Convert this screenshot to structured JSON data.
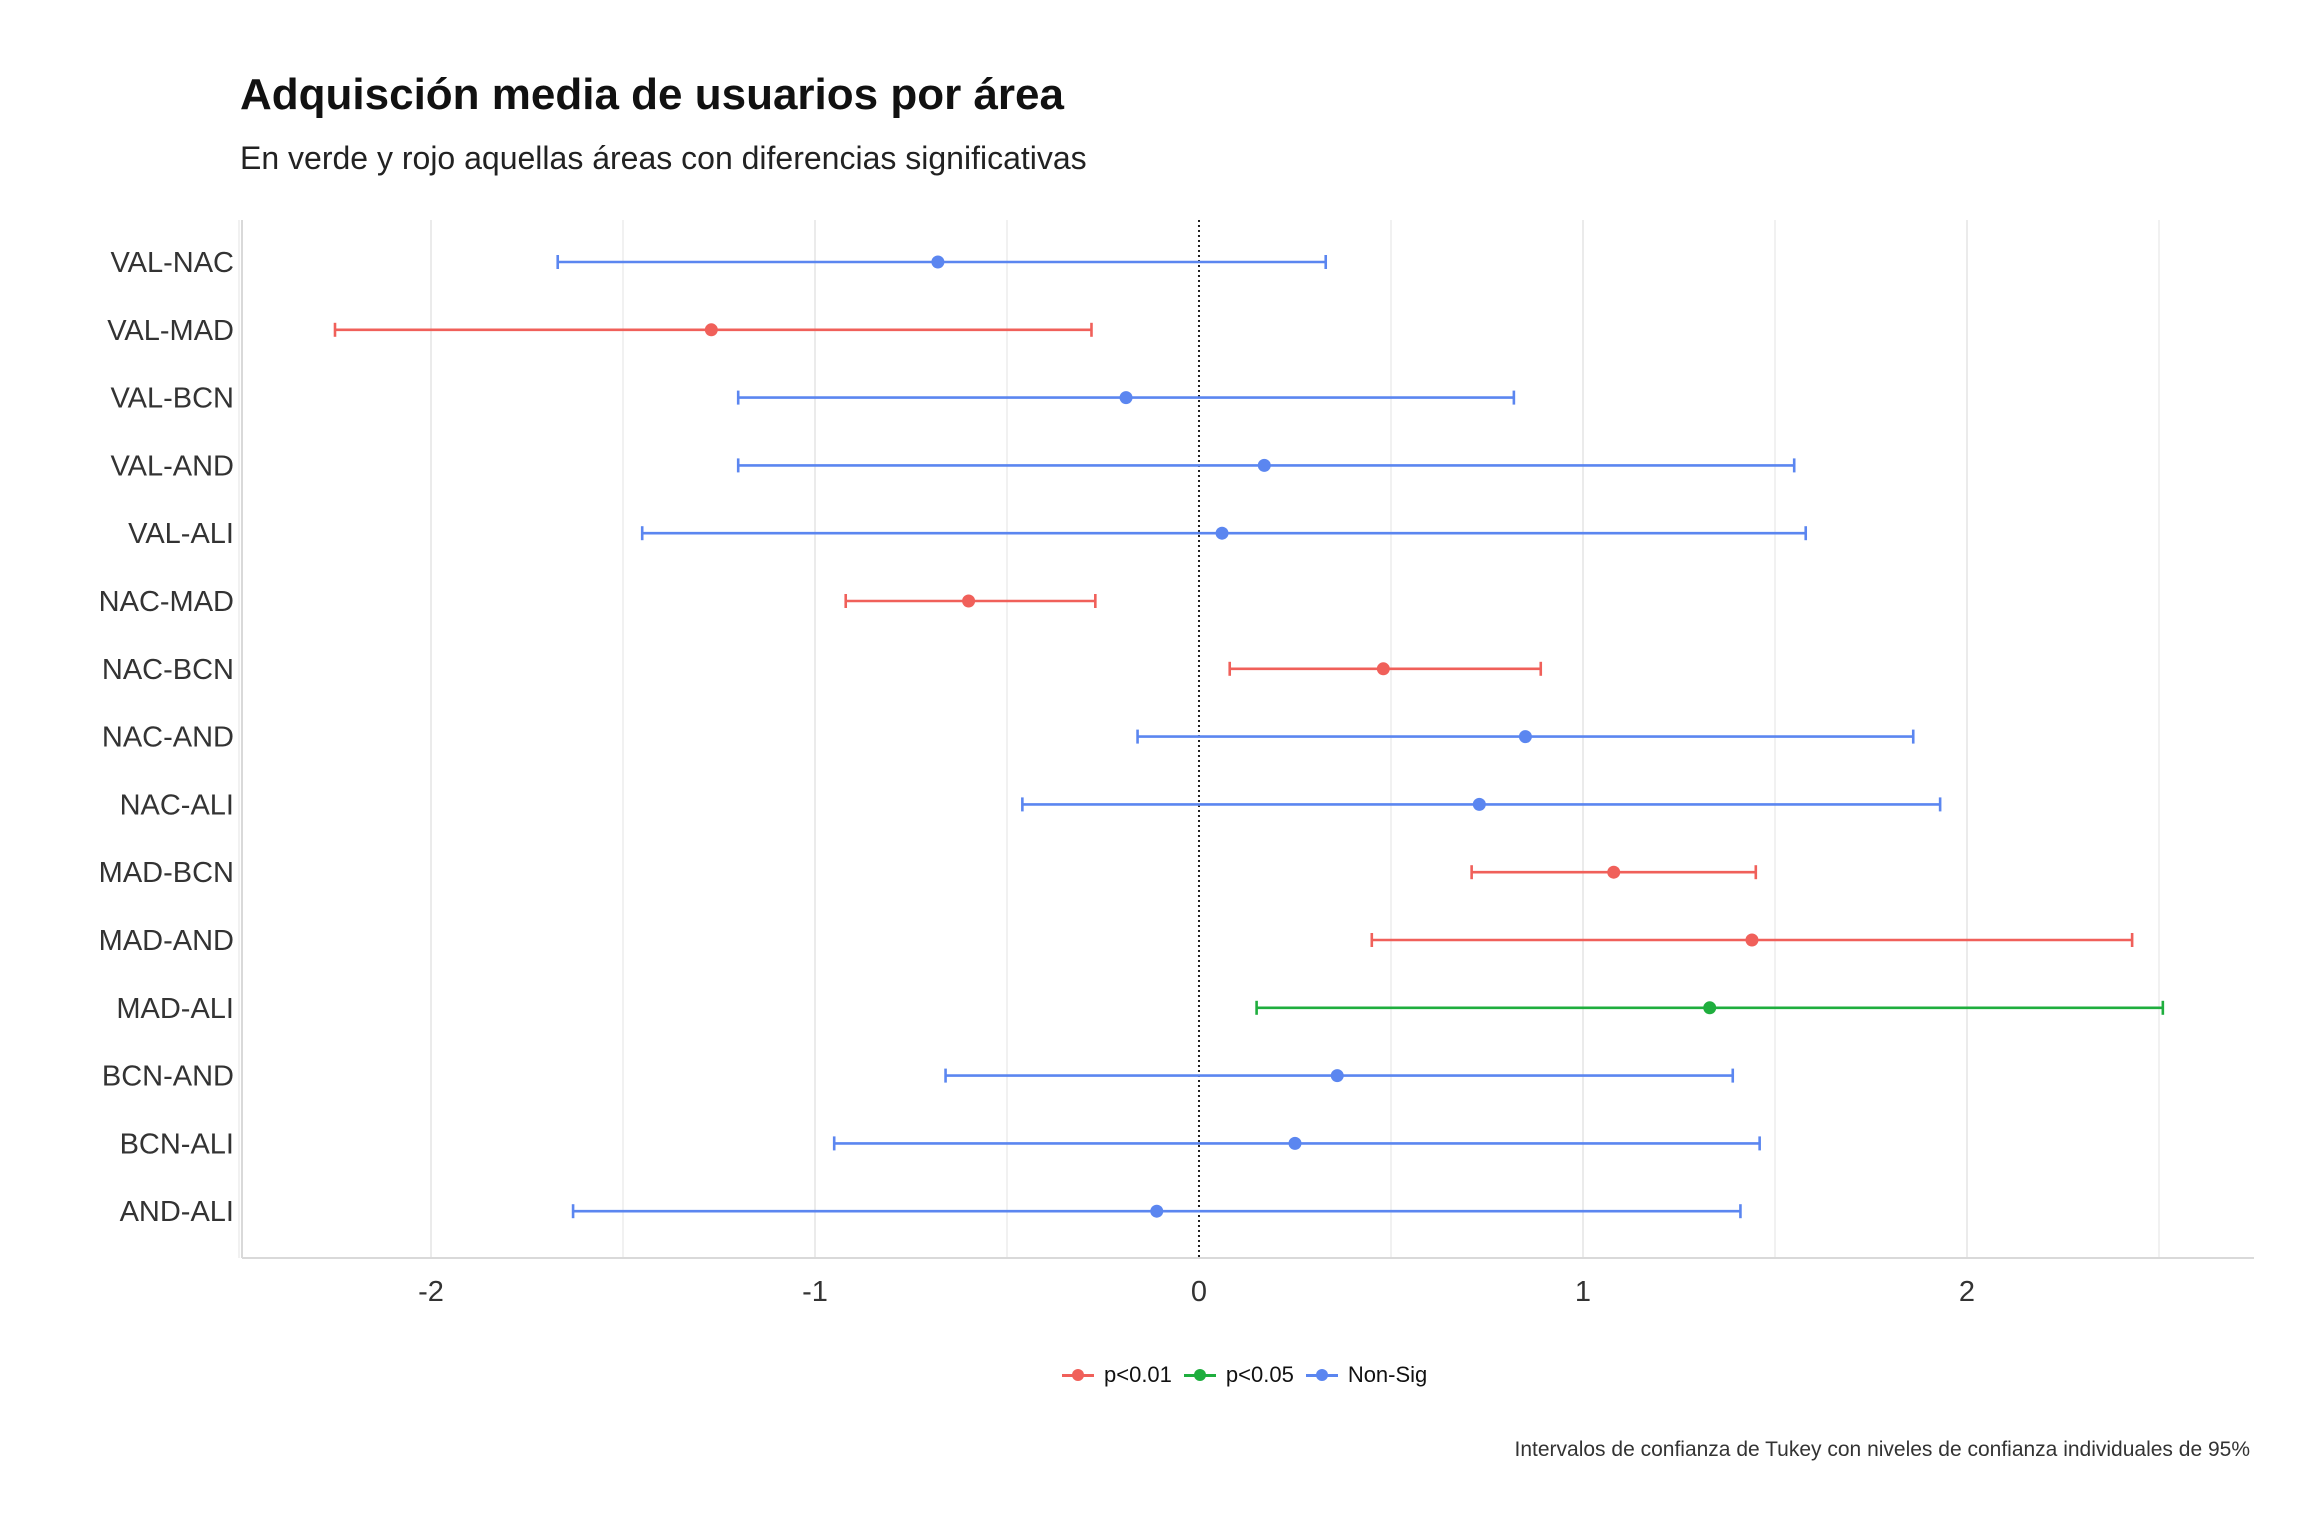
{
  "title": "Adquisción media de usuarios por área",
  "subtitle": "En verde y rojo aquellas áreas con diferencias significativas",
  "caption": "Intervalos de confianza de Tukey con niveles de confianza individuales de 95%",
  "colors": {
    "p001": "#F0605A",
    "p005": "#1FAE3E",
    "nonsig": "#5B86F0",
    "zero_line": "#222222",
    "grid": "#EBEBEB"
  },
  "legend": [
    {
      "key": "p001",
      "label": "p<0.01"
    },
    {
      "key": "p005",
      "label": "p<0.05"
    },
    {
      "key": "nonsig",
      "label": "Non-Sig"
    }
  ],
  "chart_data": {
    "type": "errorbar",
    "xlim": [
      -2.5,
      2.7
    ],
    "x_ticks": [
      -2,
      -1,
      0,
      1,
      2
    ],
    "x_tick_labels": [
      "-2",
      "-1",
      "0",
      "1",
      "2"
    ],
    "reference_line": 0,
    "grid": true,
    "legend_position": "bottom",
    "series": [
      {
        "label": "VAL-NAC",
        "estimate": -0.68,
        "lower": -1.67,
        "upper": 0.33,
        "significance": "nonsig"
      },
      {
        "label": "VAL-MAD",
        "estimate": -1.27,
        "lower": -2.25,
        "upper": -0.28,
        "significance": "p001"
      },
      {
        "label": "VAL-BCN",
        "estimate": -0.19,
        "lower": -1.2,
        "upper": 0.82,
        "significance": "nonsig"
      },
      {
        "label": "VAL-AND",
        "estimate": 0.17,
        "lower": -1.2,
        "upper": 1.55,
        "significance": "nonsig"
      },
      {
        "label": "VAL-ALI",
        "estimate": 0.06,
        "lower": -1.45,
        "upper": 1.58,
        "significance": "nonsig"
      },
      {
        "label": "NAC-MAD",
        "estimate": -0.6,
        "lower": -0.92,
        "upper": -0.27,
        "significance": "p001"
      },
      {
        "label": "NAC-BCN",
        "estimate": 0.48,
        "lower": 0.08,
        "upper": 0.89,
        "significance": "p001"
      },
      {
        "label": "NAC-AND",
        "estimate": 0.85,
        "lower": -0.16,
        "upper": 1.86,
        "significance": "nonsig"
      },
      {
        "label": "NAC-ALI",
        "estimate": 0.73,
        "lower": -0.46,
        "upper": 1.93,
        "significance": "nonsig"
      },
      {
        "label": "MAD-BCN",
        "estimate": 1.08,
        "lower": 0.71,
        "upper": 1.45,
        "significance": "p001"
      },
      {
        "label": "MAD-AND",
        "estimate": 1.44,
        "lower": 0.45,
        "upper": 2.43,
        "significance": "p001"
      },
      {
        "label": "MAD-ALI",
        "estimate": 1.33,
        "lower": 0.15,
        "upper": 2.51,
        "significance": "p005"
      },
      {
        "label": "BCN-AND",
        "estimate": 0.36,
        "lower": -0.66,
        "upper": 1.39,
        "significance": "nonsig"
      },
      {
        "label": "BCN-ALI",
        "estimate": 0.25,
        "lower": -0.95,
        "upper": 1.46,
        "significance": "nonsig"
      },
      {
        "label": "AND-ALI",
        "estimate": -0.11,
        "lower": -1.63,
        "upper": 1.41,
        "significance": "nonsig"
      }
    ]
  }
}
